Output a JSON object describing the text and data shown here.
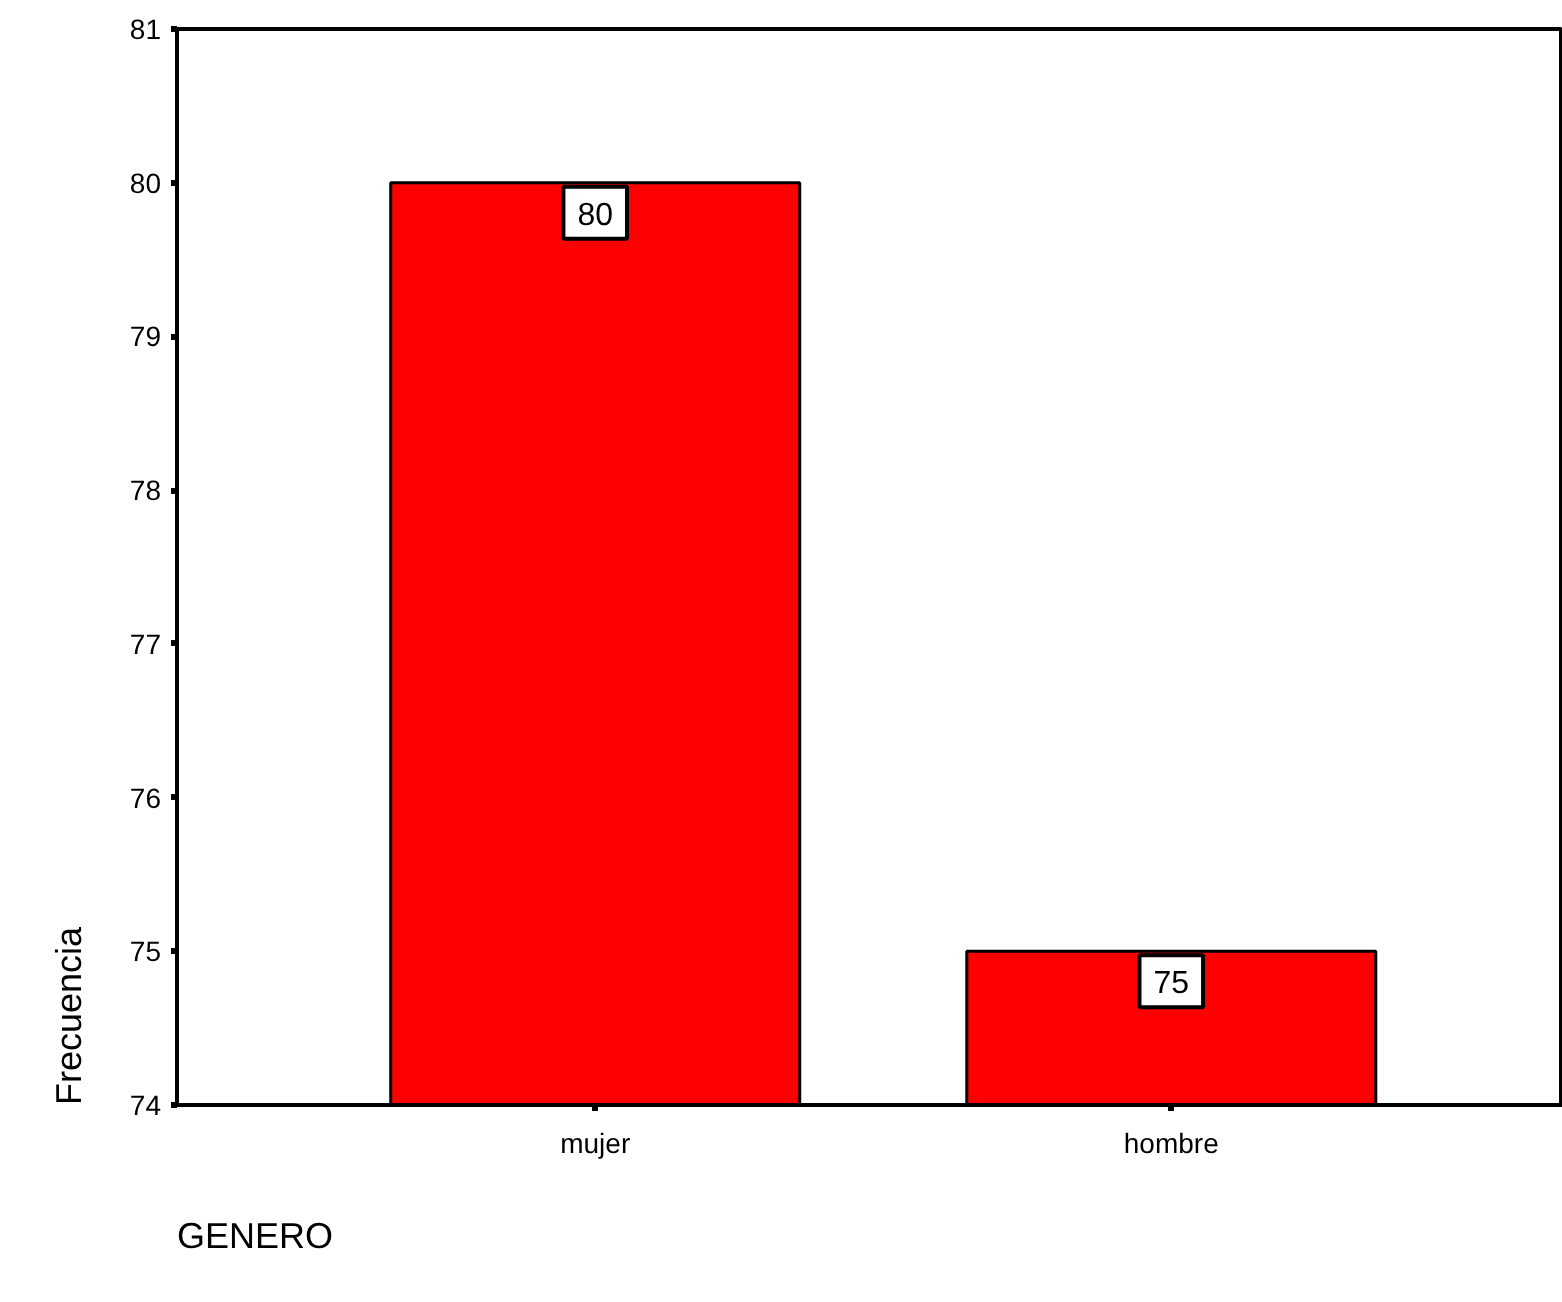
{
  "chart_data": {
    "type": "bar",
    "xlabel": "GENERO",
    "ylabel": "Frecuencia",
    "categories": [
      "mujer",
      "hombre"
    ],
    "values": [
      80,
      75
    ],
    "color": "#ff0000",
    "ylim": [
      74,
      81
    ],
    "yticks": [
      74,
      75,
      76,
      77,
      78,
      79,
      80,
      81
    ],
    "data_labels": true
  }
}
